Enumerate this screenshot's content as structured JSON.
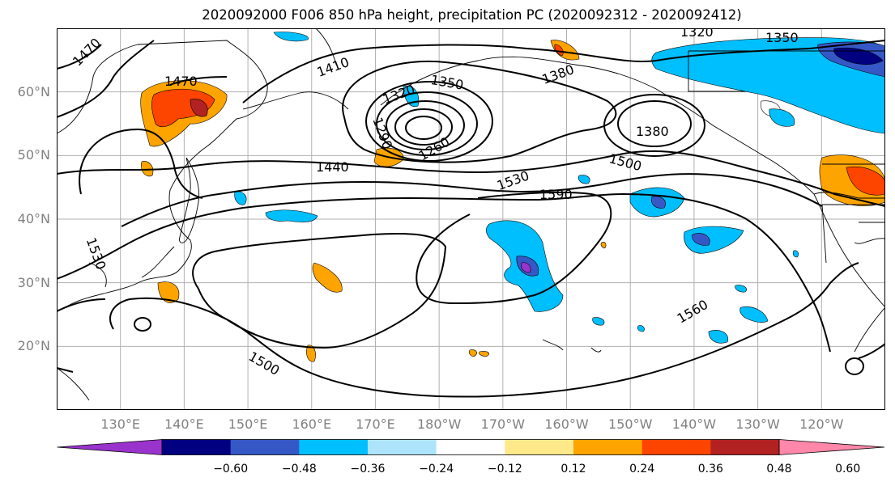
{
  "title": "2020092000 F006 850 hPa height, precipitation PC (2020092312 - 2020092412)",
  "lat_labels": [
    "60°N",
    "50°N",
    "40°N",
    "30°N",
    "20°N"
  ],
  "lat_values": [
    60,
    50,
    40,
    30,
    20
  ],
  "lon_labels": [
    "130°E",
    "140°E",
    "150°E",
    "160°E",
    "170°E",
    "180°W",
    "170°W",
    "160°W",
    "150°W",
    "140°W",
    "130°W",
    "120°W"
  ],
  "lon_values": [
    130,
    140,
    150,
    160,
    170,
    180,
    190,
    200,
    210,
    220,
    230,
    240
  ],
  "extent": {
    "lon_min": 120,
    "lon_max": 250,
    "lat_min": 10,
    "lat_max": 70
  },
  "contour_labels": [
    "1470",
    "1470",
    "1410",
    "1350",
    "1320",
    "1320",
    "1350",
    "1380",
    "1380",
    "1440",
    "1500",
    "1530",
    "1590",
    "1560",
    "1500",
    "1530",
    "1290",
    "1260"
  ],
  "colorbar": {
    "colors": [
      "#9933cc",
      "#000080",
      "#3658c6",
      "#00bfff",
      "#aee4fb",
      "#ffffff",
      "#fde989",
      "#fda400",
      "#fe4500",
      "#b22222",
      "#ff88aa"
    ],
    "tick_labels": [
      "−0.60",
      "−0.48",
      "−0.36",
      "−0.24",
      "−0.12",
      "0.12",
      "0.24",
      "0.36",
      "0.48",
      "0.60"
    ],
    "tick_values": [
      -0.6,
      -0.48,
      -0.36,
      -0.24,
      -0.12,
      0.12,
      0.24,
      0.36,
      0.48,
      0.6
    ]
  }
}
